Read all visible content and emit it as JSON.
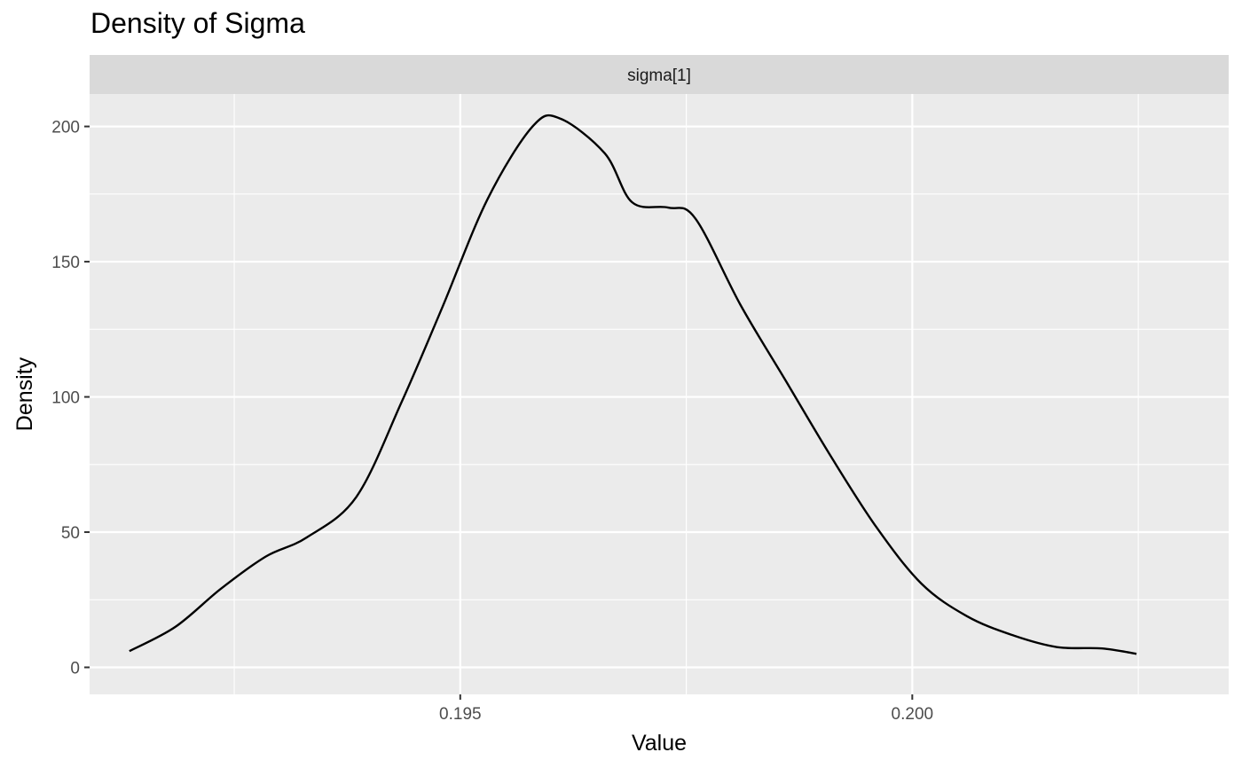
{
  "chart_data": {
    "type": "line",
    "title": "Density of Sigma",
    "facet_label": "sigma[1]",
    "xlabel": "Value",
    "ylabel": "Density",
    "xlim": [
      0.1909,
      0.2035
    ],
    "ylim": [
      -10,
      212
    ],
    "x_ticks": [
      0.195,
      0.2
    ],
    "x_tick_labels": [
      "0.195",
      "0.200"
    ],
    "x_minor_ticks": [
      0.1925,
      0.1975,
      0.2025
    ],
    "y_ticks": [
      0,
      50,
      100,
      150,
      200
    ],
    "y_tick_labels": [
      "0",
      "50",
      "100",
      "150",
      "200"
    ],
    "y_minor_ticks": [
      25,
      75,
      125,
      175
    ],
    "grid": true,
    "colors": {
      "panel_bg": "#ebebeb",
      "strip_bg": "#d9d9d9",
      "grid": "#ffffff",
      "line": "#000000",
      "tick_text": "#4d4d4d",
      "axis_title": "#000000"
    },
    "series": [
      {
        "x": [
          0.19134,
          0.19185,
          0.19235,
          0.19285,
          0.1933,
          0.19385,
          0.19435,
          0.1948,
          0.1953,
          0.1958,
          0.1961,
          0.1966,
          0.1969,
          0.1973,
          0.1976,
          0.1981,
          0.1986,
          0.1991,
          0.1996,
          0.2001,
          0.2006,
          0.2011,
          0.2016,
          0.2021,
          0.20248
        ],
        "y": [
          6,
          15,
          29,
          41,
          48,
          63,
          98,
          133,
          173,
          200,
          203,
          190,
          172,
          170,
          166,
          134,
          106,
          78,
          52,
          31,
          19,
          12,
          7.5,
          7,
          5
        ]
      }
    ]
  }
}
